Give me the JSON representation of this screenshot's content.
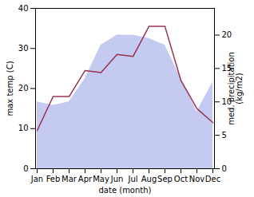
{
  "chart_data": {
    "type": "line",
    "categories": [
      "Jan",
      "Feb",
      "Mar",
      "Apr",
      "May",
      "Jun",
      "Jul",
      "Aug",
      "Sep",
      "Oct",
      "Nov",
      "Dec"
    ],
    "series": [
      {
        "type": "area",
        "axis": "y2",
        "color": "#c5caf0",
        "values": [
          10.0,
          9.5,
          10.0,
          13.5,
          18.5,
          20.0,
          20.0,
          19.5,
          18.5,
          13.5,
          8.5,
          13.0
        ]
      },
      {
        "type": "line",
        "color": "#993355",
        "values": [
          9.5,
          18.0,
          18.0,
          24.5,
          24.0,
          28.5,
          28.0,
          35.5,
          35.5,
          22.0,
          15.0,
          11.5
        ]
      }
    ],
    "xlabel": "date (month)",
    "ylabel": "max temp (C)",
    "y2label": "med. precipitation\n(kg/m2)",
    "ylim": [
      0,
      40
    ],
    "yticks": [
      0,
      10,
      20,
      30,
      40
    ],
    "y2lim": [
      0,
      24
    ],
    "y2ticks": [
      0,
      5,
      10,
      15,
      20
    ],
    "grid": false
  }
}
